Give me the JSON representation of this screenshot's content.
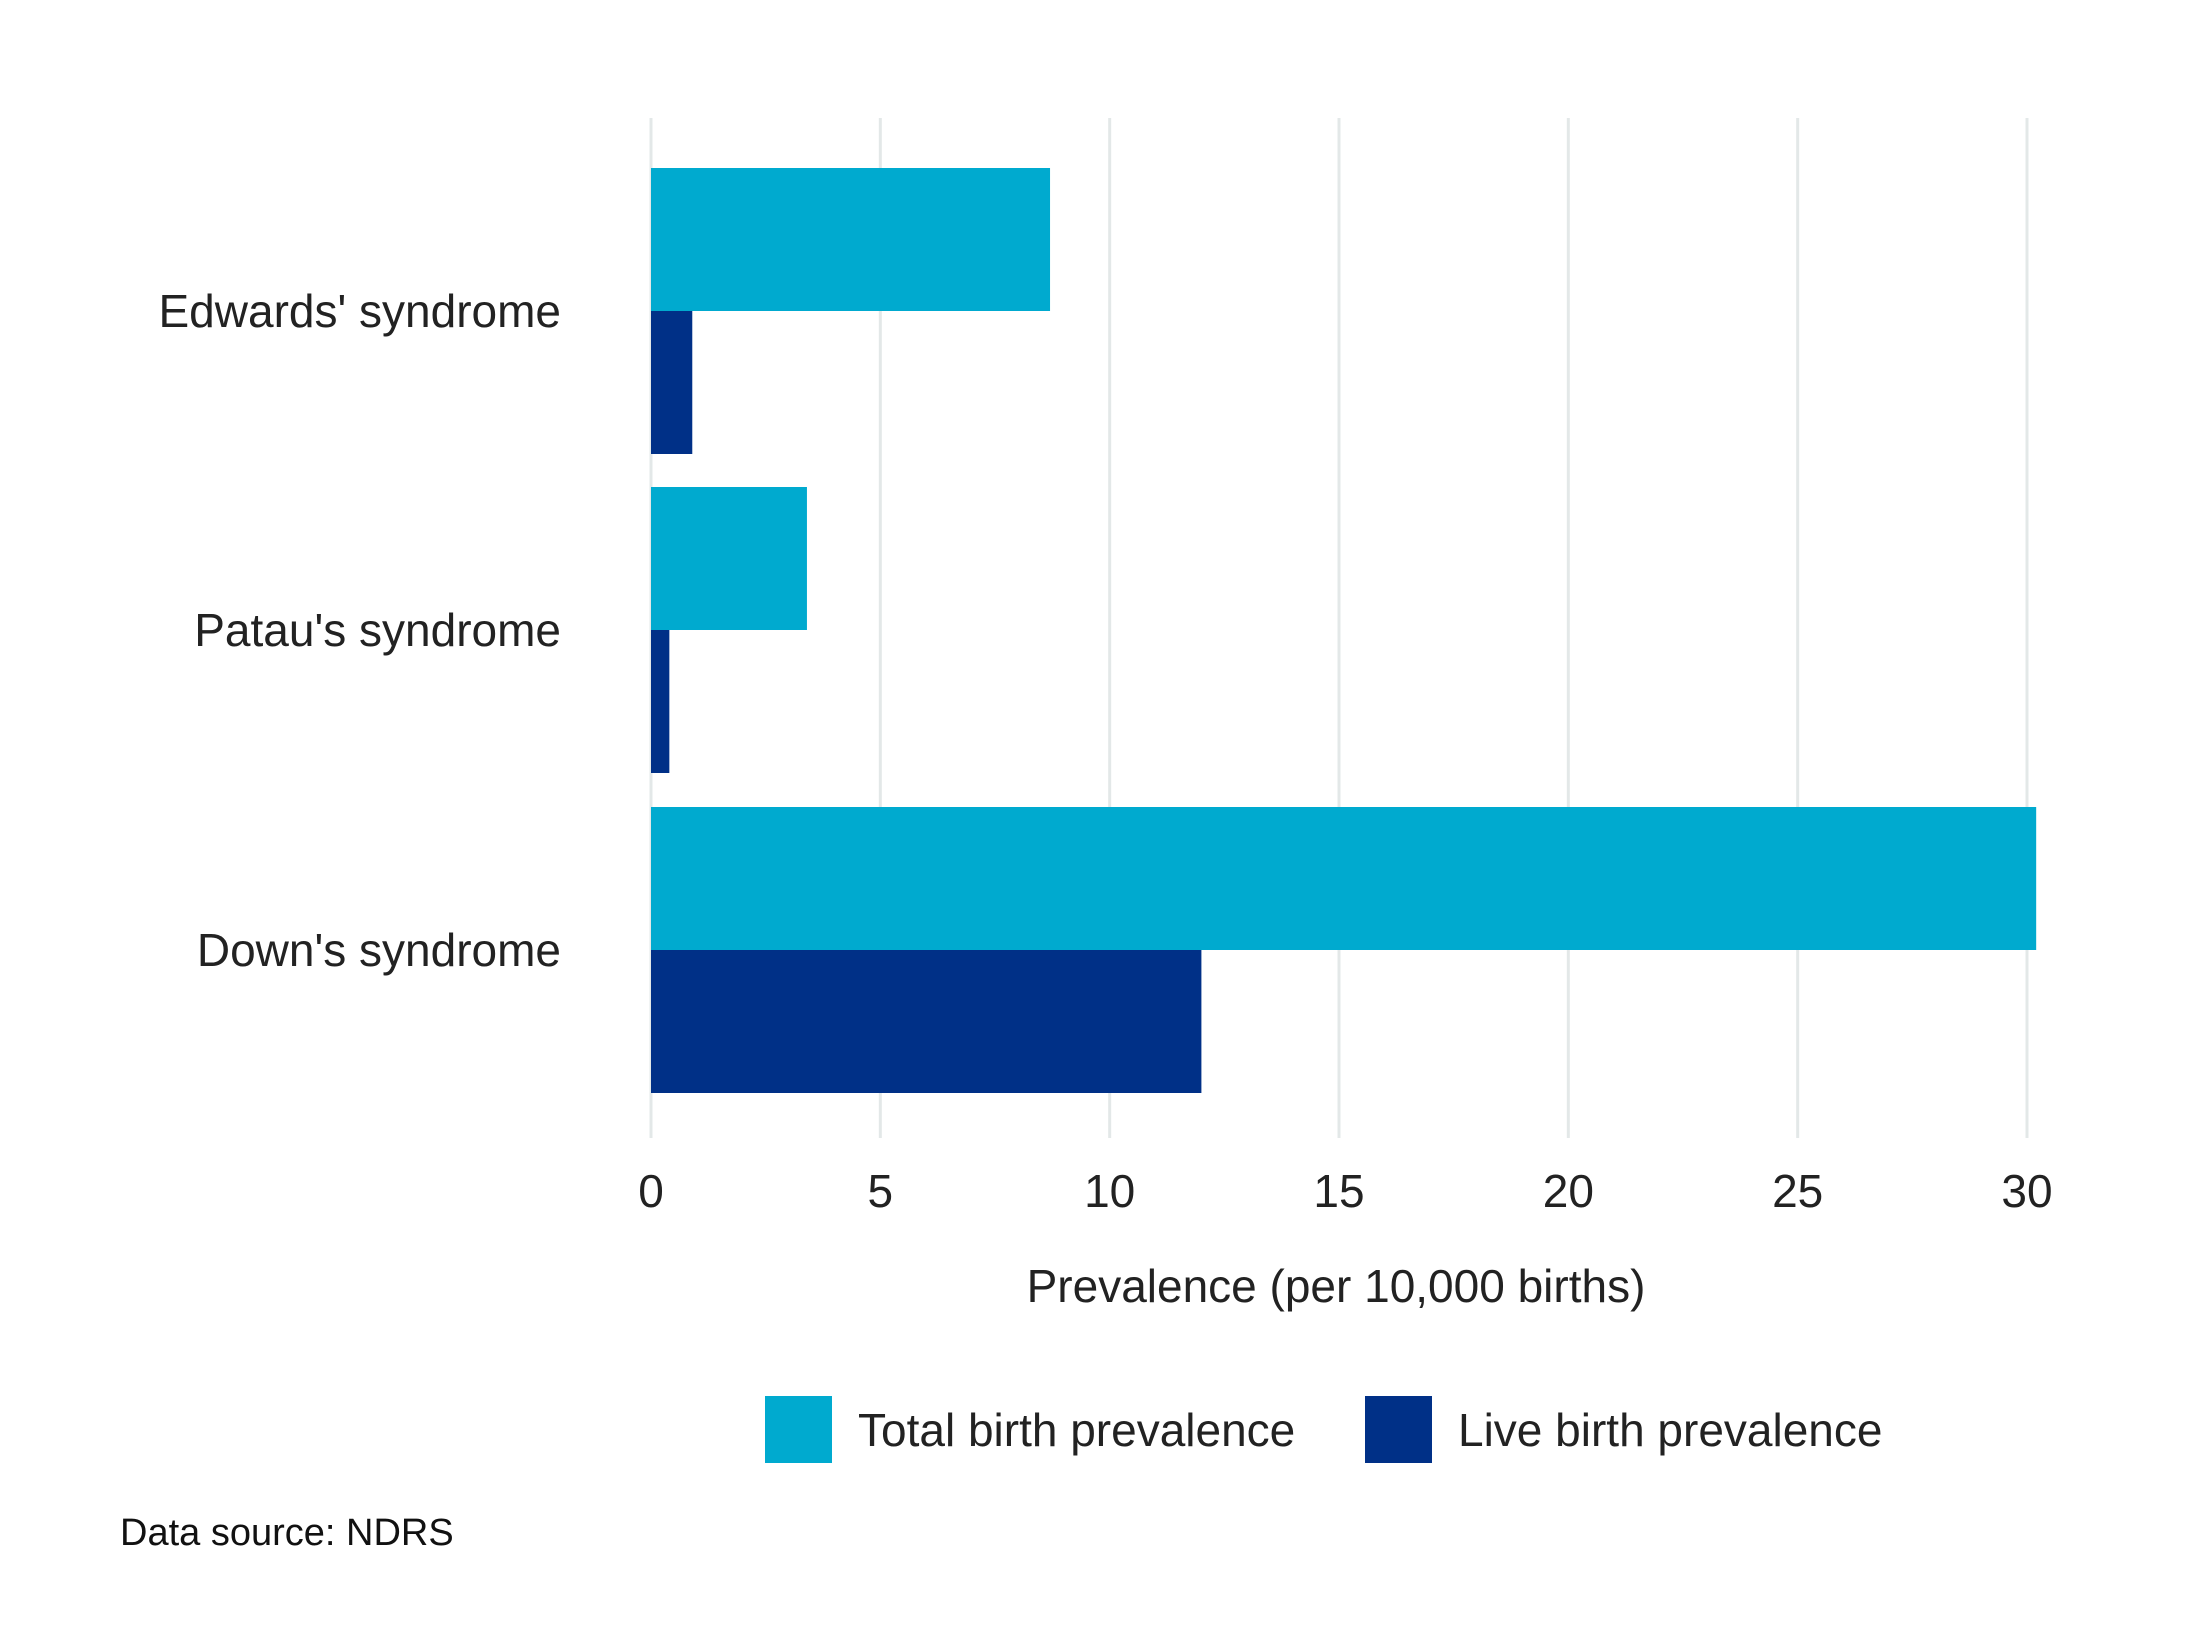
{
  "chart_data": {
    "type": "bar",
    "orientation": "horizontal",
    "categories": [
      "Edwards' syndrome",
      "Patau's syndrome",
      "Down's syndrome"
    ],
    "series": [
      {
        "name": "Total birth prevalence",
        "color": "#00AACF",
        "values": [
          8.7,
          3.4,
          30.2
        ]
      },
      {
        "name": "Live birth prevalence",
        "color": "#003087",
        "values": [
          0.9,
          0.4,
          12.0
        ]
      }
    ],
    "xlabel": "Prevalence (per 10,000 births)",
    "xlim": [
      0,
      30
    ],
    "xticks": [
      0,
      5,
      10,
      15,
      20,
      25,
      30
    ],
    "grid": "vertical",
    "legend_position": "bottom"
  },
  "footer": {
    "source": "Data source: NDRS"
  }
}
